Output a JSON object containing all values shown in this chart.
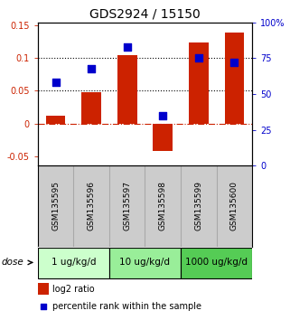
{
  "title": "GDS2924 / 15150",
  "samples": [
    "GSM135595",
    "GSM135596",
    "GSM135597",
    "GSM135598",
    "GSM135599",
    "GSM135600"
  ],
  "log2_ratio": [
    0.012,
    0.048,
    0.105,
    -0.042,
    0.124,
    0.14
  ],
  "percentile_rank": [
    58,
    68,
    83,
    35,
    75,
    72
  ],
  "bar_color": "#cc2200",
  "dot_color": "#0000cc",
  "ylim_left": [
    -0.065,
    0.155
  ],
  "ylim_right": [
    0,
    100
  ],
  "yticks_left": [
    -0.05,
    0,
    0.05,
    0.1,
    0.15
  ],
  "yticks_right": [
    0,
    25,
    50,
    75,
    100
  ],
  "ytick_labels_left": [
    "-0.05",
    "0",
    "0.05",
    "0.1",
    "0.15"
  ],
  "ytick_labels_right": [
    "0",
    "25",
    "50",
    "75",
    "100%"
  ],
  "hlines": [
    0.05,
    0.1
  ],
  "dose_groups": [
    {
      "label": "1 ug/kg/d",
      "samples": [
        0,
        1
      ],
      "color": "#ccffcc"
    },
    {
      "label": "10 ug/kg/d",
      "samples": [
        2,
        3
      ],
      "color": "#99ee99"
    },
    {
      "label": "1000 ug/kg/d",
      "samples": [
        4,
        5
      ],
      "color": "#55cc55"
    }
  ],
  "dose_label": "dose",
  "legend_bar_label": "log2 ratio",
  "legend_dot_label": "percentile rank within the sample",
  "bar_width": 0.55,
  "dot_size": 28,
  "background_color": "#ffffff",
  "sample_box_color": "#cccccc",
  "title_fontsize": 10,
  "tick_fontsize": 7,
  "sample_fontsize": 6.5,
  "dose_fontsize": 7.5,
  "legend_fontsize": 7
}
